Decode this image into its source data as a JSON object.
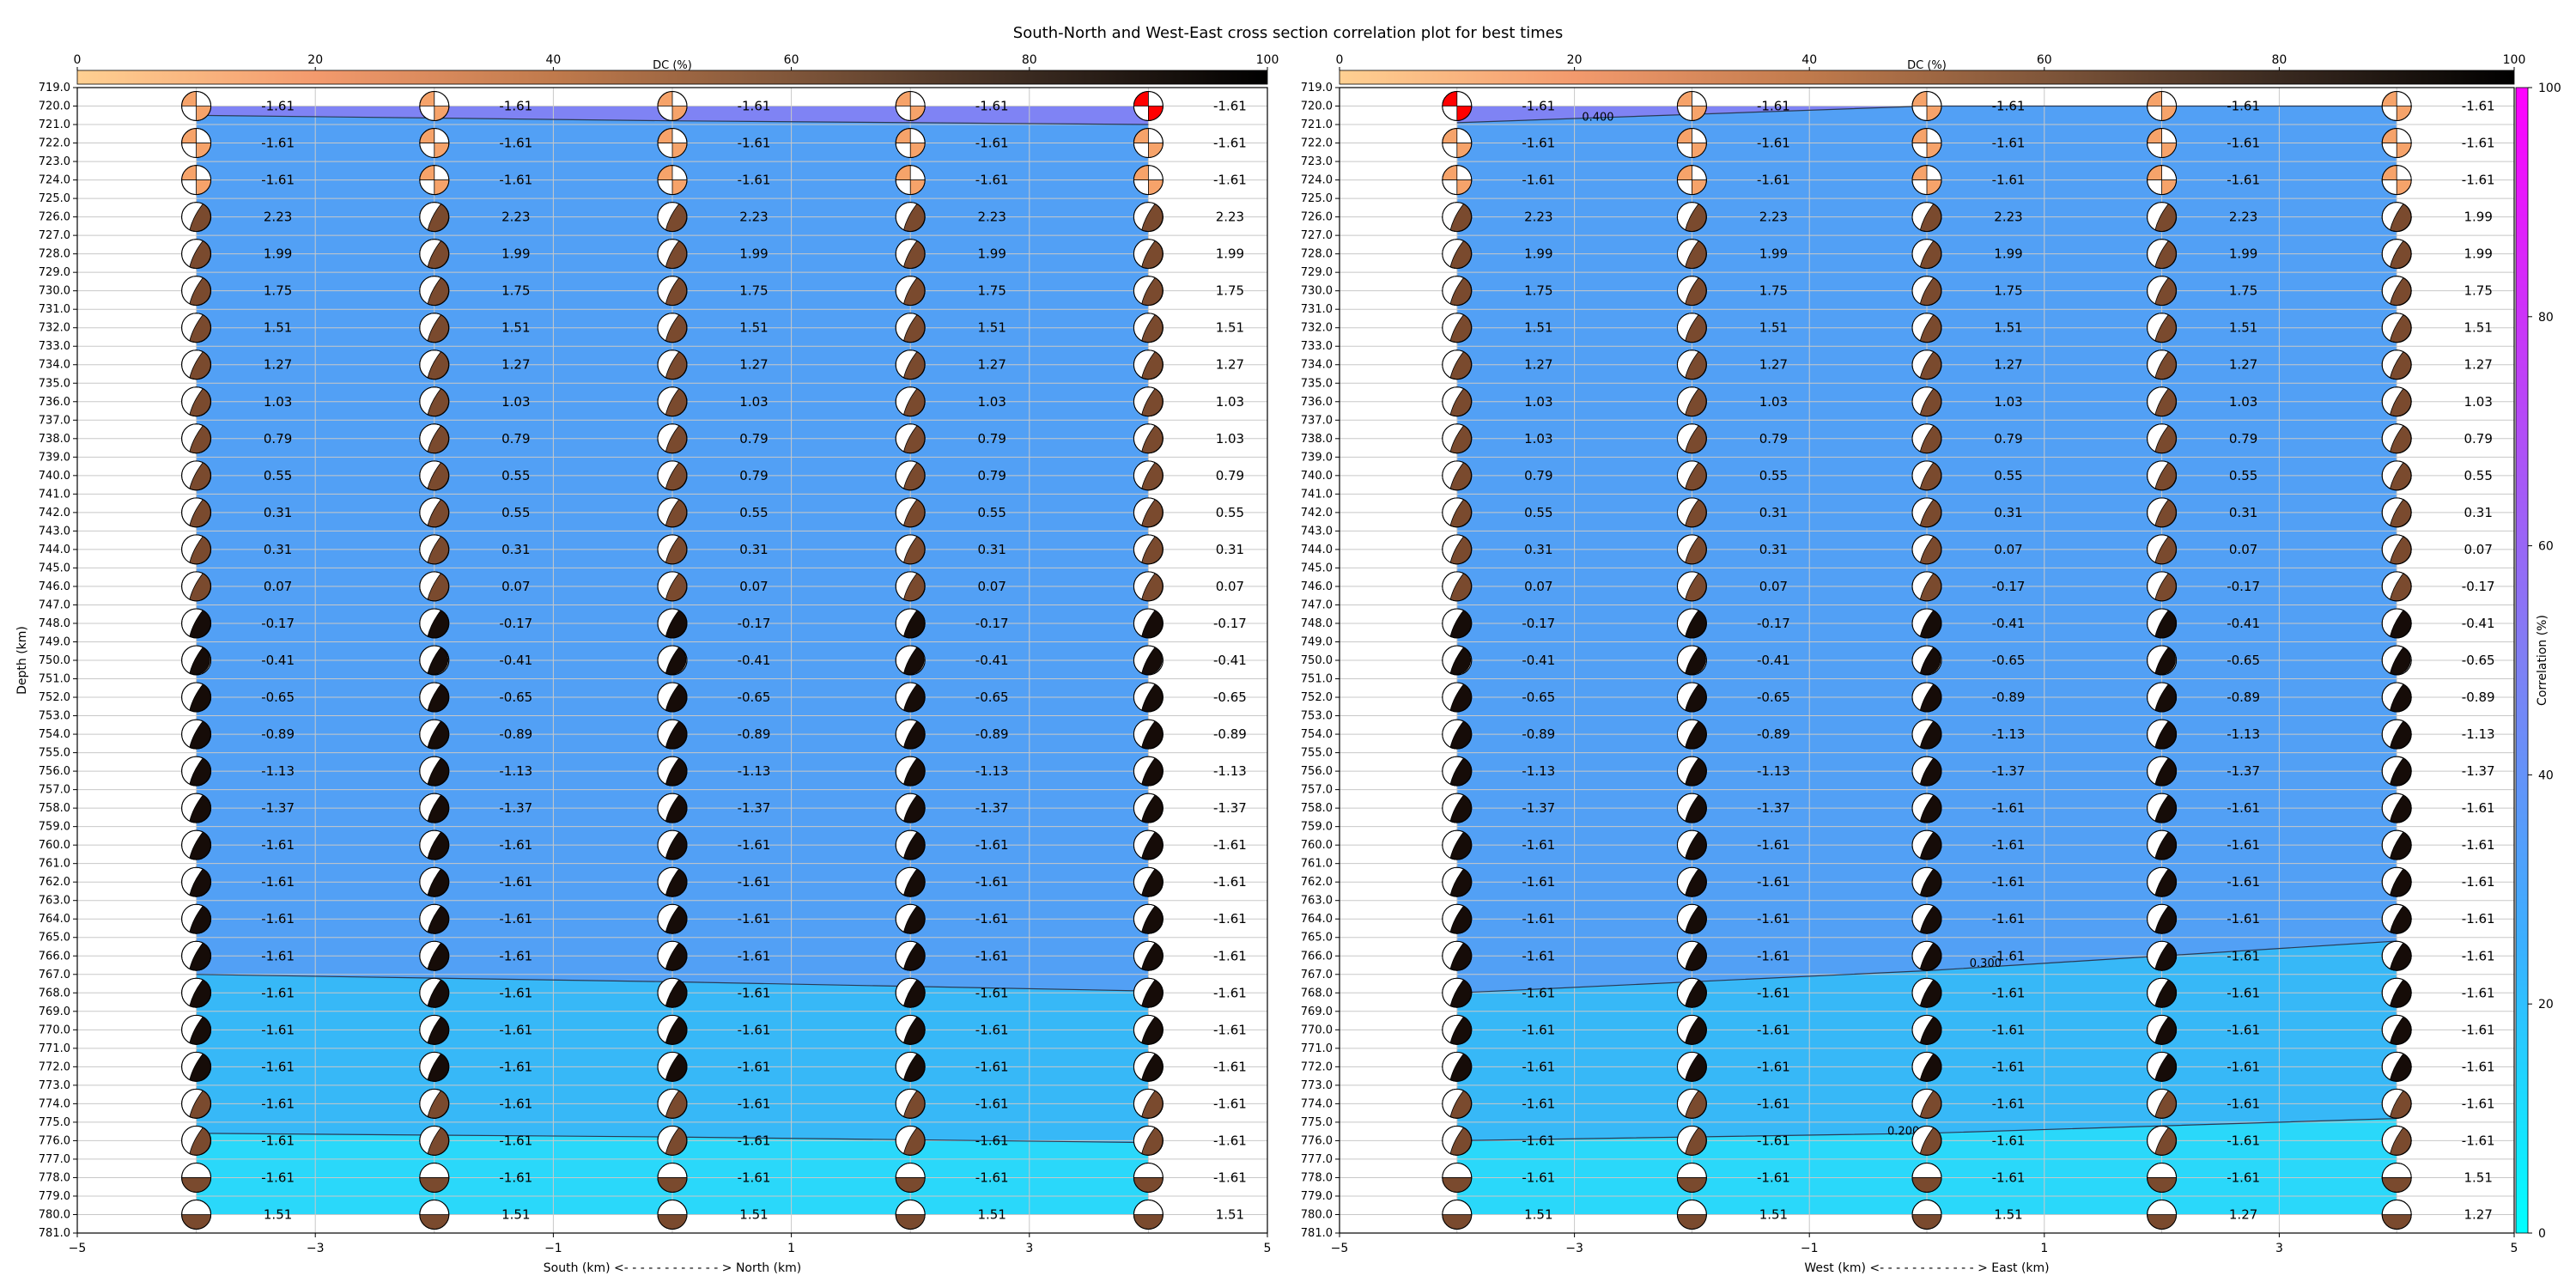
{
  "chart_data": {
    "type": "heatmap",
    "title": "South-North and West-East cross section correlation plot for best times",
    "depth_axis": {
      "label": "Depth (km)",
      "range": [
        719,
        781
      ],
      "tick_step": 1,
      "inverted": true
    },
    "dc_colorbar": {
      "label": "DC (%)",
      "range": [
        0,
        100
      ],
      "ticks": [
        "0",
        "20",
        "40",
        "60",
        "80",
        "100"
      ],
      "colors": [
        "#ffd092",
        "#f39a6d",
        "#c07a4c",
        "#80563a",
        "#3a2a20",
        "#000000"
      ]
    },
    "correlation_colorbar": {
      "label": "Correlation (%)",
      "range": [
        0,
        100
      ],
      "ticks": [
        "0",
        "20",
        "40",
        "60",
        "80",
        "100"
      ],
      "colors": [
        "#00ffff",
        "#3ab0ff",
        "#7f7ff5",
        "#bf40f7",
        "#ff00ff"
      ]
    },
    "panels": [
      {
        "xlabel": "South (km) <- - - - - - - - - - - - > North (km)",
        "xlim": [
          -5,
          5
        ],
        "xticks": [
          "−5",
          "−3",
          "−1",
          "1",
          "3",
          "5"
        ],
        "columns": [
          -4,
          -2,
          0,
          2,
          4
        ],
        "depths": [
          720,
          722,
          724,
          726,
          728,
          730,
          732,
          734,
          736,
          738,
          740,
          742,
          744,
          746,
          748,
          750,
          752,
          754,
          756,
          758,
          760,
          762,
          764,
          766,
          768,
          770,
          772,
          774,
          776,
          778,
          780
        ],
        "labels": [
          [
            "-1.61",
            "-1.61",
            "-1.61",
            "2.23",
            "1.99",
            "1.75",
            "1.51",
            "1.27",
            "1.03",
            "0.79",
            "0.55",
            "0.31",
            "0.31",
            "0.07",
            "-0.17",
            "-0.41",
            "-0.65",
            "-0.89",
            "-1.13",
            "-1.37",
            "-1.61",
            "-1.61",
            "-1.61",
            "-1.61",
            "-1.61",
            "-1.61",
            "-1.61",
            "-1.61",
            "-1.61",
            "-1.61",
            "1.51"
          ],
          [
            "-1.61",
            "-1.61",
            "-1.61",
            "2.23",
            "1.99",
            "1.75",
            "1.51",
            "1.27",
            "1.03",
            "0.79",
            "0.55",
            "0.55",
            "0.31",
            "0.07",
            "-0.17",
            "-0.41",
            "-0.65",
            "-0.89",
            "-1.13",
            "-1.37",
            "-1.61",
            "-1.61",
            "-1.61",
            "-1.61",
            "-1.61",
            "-1.61",
            "-1.61",
            "-1.61",
            "-1.61",
            "-1.61",
            "1.51"
          ],
          [
            "-1.61",
            "-1.61",
            "-1.61",
            "2.23",
            "1.99",
            "1.75",
            "1.51",
            "1.27",
            "1.03",
            "0.79",
            "0.79",
            "0.55",
            "0.31",
            "0.07",
            "-0.17",
            "-0.41",
            "-0.65",
            "-0.89",
            "-1.13",
            "-1.37",
            "-1.61",
            "-1.61",
            "-1.61",
            "-1.61",
            "-1.61",
            "-1.61",
            "-1.61",
            "-1.61",
            "-1.61",
            "-1.61",
            "1.51"
          ],
          [
            "-1.61",
            "-1.61",
            "-1.61",
            "2.23",
            "1.99",
            "1.75",
            "1.51",
            "1.27",
            "1.03",
            "0.79",
            "0.79",
            "0.55",
            "0.31",
            "0.07",
            "-0.17",
            "-0.41",
            "-0.65",
            "-0.89",
            "-1.13",
            "-1.37",
            "-1.61",
            "-1.61",
            "-1.61",
            "-1.61",
            "-1.61",
            "-1.61",
            "-1.61",
            "-1.61",
            "-1.61",
            "-1.61",
            "1.51"
          ],
          [
            "-1.61",
            "-1.61",
            "-1.61",
            "2.23",
            "1.99",
            "1.75",
            "1.51",
            "1.27",
            "1.03",
            "1.03",
            "0.79",
            "0.55",
            "0.31",
            "0.07",
            "-0.17",
            "-0.41",
            "-0.65",
            "-0.89",
            "-1.13",
            "-1.37",
            "-1.61",
            "-1.61",
            "-1.61",
            "-1.61",
            "-1.61",
            "-1.61",
            "-1.61",
            "-1.61",
            "-1.61",
            "-1.61",
            "1.51"
          ]
        ],
        "contours": [
          {
            "label": "",
            "points": [
              [
                -4,
                720.5
              ],
              [
                0,
                720.8
              ],
              [
                4,
                721.0
              ]
            ]
          },
          {
            "label": "",
            "points": [
              [
                -4,
                767.0
              ],
              [
                0,
                767.4
              ],
              [
                4,
                767.9
              ]
            ]
          },
          {
            "label": "",
            "points": [
              [
                -4,
                775.6
              ],
              [
                0,
                775.8
              ],
              [
                4,
                776.1
              ]
            ]
          }
        ],
        "contour_labels": []
      },
      {
        "xlabel": "West (km) <- - - - - - - - - - - - > East (km)",
        "xlim": [
          -5,
          5
        ],
        "xticks": [
          "−5",
          "−3",
          "−1",
          "1",
          "3",
          "5"
        ],
        "columns": [
          -4,
          -2,
          0,
          2,
          4
        ],
        "depths": [
          720,
          722,
          724,
          726,
          728,
          730,
          732,
          734,
          736,
          738,
          740,
          742,
          744,
          746,
          748,
          750,
          752,
          754,
          756,
          758,
          760,
          762,
          764,
          766,
          768,
          770,
          772,
          774,
          776,
          778,
          780
        ],
        "labels": [
          [
            "-1.61",
            "-1.61",
            "-1.61",
            "2.23",
            "1.99",
            "1.75",
            "1.51",
            "1.27",
            "1.03",
            "1.03",
            "0.79",
            "0.55",
            "0.31",
            "0.07",
            "-0.17",
            "-0.41",
            "-0.65",
            "-0.89",
            "-1.13",
            "-1.37",
            "-1.61",
            "-1.61",
            "-1.61",
            "-1.61",
            "-1.61",
            "-1.61",
            "-1.61",
            "-1.61",
            "-1.61",
            "-1.61",
            "1.51"
          ],
          [
            "-1.61",
            "-1.61",
            "-1.61",
            "2.23",
            "1.99",
            "1.75",
            "1.51",
            "1.27",
            "1.03",
            "0.79",
            "0.55",
            "0.31",
            "0.31",
            "0.07",
            "-0.17",
            "-0.41",
            "-0.65",
            "-0.89",
            "-1.13",
            "-1.37",
            "-1.61",
            "-1.61",
            "-1.61",
            "-1.61",
            "-1.61",
            "-1.61",
            "-1.61",
            "-1.61",
            "-1.61",
            "-1.61",
            "1.51"
          ],
          [
            "-1.61",
            "-1.61",
            "-1.61",
            "2.23",
            "1.99",
            "1.75",
            "1.51",
            "1.27",
            "1.03",
            "0.79",
            "0.55",
            "0.31",
            "0.07",
            "-0.17",
            "-0.41",
            "-0.65",
            "-0.89",
            "-1.13",
            "-1.37",
            "-1.61",
            "-1.61",
            "-1.61",
            "-1.61",
            "-1.61",
            "-1.61",
            "-1.61",
            "-1.61",
            "-1.61",
            "-1.61",
            "-1.61",
            "1.51"
          ],
          [
            "-1.61",
            "-1.61",
            "-1.61",
            "2.23",
            "1.99",
            "1.75",
            "1.51",
            "1.27",
            "1.03",
            "0.79",
            "0.55",
            "0.31",
            "0.07",
            "-0.17",
            "-0.41",
            "-0.65",
            "-0.89",
            "-1.13",
            "-1.37",
            "-1.61",
            "-1.61",
            "-1.61",
            "-1.61",
            "-1.61",
            "-1.61",
            "-1.61",
            "-1.61",
            "-1.61",
            "-1.61",
            "-1.61",
            "1.27"
          ],
          [
            "-1.61",
            "-1.61",
            "-1.61",
            "1.99",
            "1.99",
            "1.75",
            "1.51",
            "1.27",
            "1.03",
            "0.79",
            "0.55",
            "0.31",
            "0.07",
            "-0.17",
            "-0.41",
            "-0.65",
            "-0.89",
            "-1.13",
            "-1.37",
            "-1.61",
            "-1.61",
            "-1.61",
            "-1.61",
            "-1.61",
            "-1.61",
            "-1.61",
            "-1.61",
            "-1.61",
            "-1.61",
            "1.51",
            "1.27"
          ]
        ],
        "contours": [
          {
            "label": "0.400",
            "points": [
              [
                -4,
                720.9
              ],
              [
                0,
                720.0
              ],
              [
                4,
                720.0
              ]
            ]
          },
          {
            "label": "0.300",
            "points": [
              [
                -4,
                768.0
              ],
              [
                0,
                766.8
              ],
              [
                4,
                765.2
              ]
            ]
          },
          {
            "label": "",
            "points": [
              [
                -4,
                776.0
              ],
              [
                0,
                775.6
              ],
              [
                4,
                774.8
              ]
            ]
          }
        ],
        "contour_labels": [
          {
            "text": "0.400",
            "x": -2.8,
            "depth": 720.6
          },
          {
            "text": "0.300",
            "x": 0.5,
            "depth": 766.4
          },
          {
            "text": "0.200",
            "x": -0.2,
            "depth": 775.5
          }
        ]
      }
    ],
    "beachball_colors": {
      "shaded": "#7a4a2e",
      "light": "#f6a36a",
      "dark": "#160c08",
      "red": "#ff0000"
    }
  }
}
